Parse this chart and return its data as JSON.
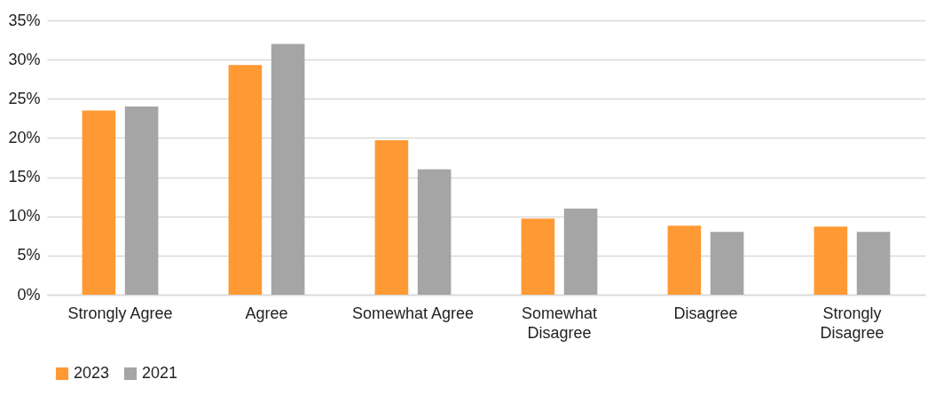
{
  "chart_data": {
    "type": "bar",
    "categories": [
      "Strongly Agree",
      "Agree",
      "Somewhat Agree",
      "Somewhat Disagree",
      "Disagree",
      "Strongly Disagree"
    ],
    "series": [
      {
        "name": "2023",
        "color": "#ff9933",
        "values": [
          23.5,
          29.3,
          19.7,
          9.7,
          8.8,
          8.7
        ]
      },
      {
        "name": "2021",
        "color": "#a5a5a5",
        "values": [
          24.0,
          32.0,
          16.0,
          11.0,
          8.0,
          8.0
        ]
      }
    ],
    "ylim": [
      0,
      35
    ],
    "yticks": [
      {
        "value": 0,
        "label": "0%"
      },
      {
        "value": 5,
        "label": "5%"
      },
      {
        "value": 10,
        "label": "10%"
      },
      {
        "value": 15,
        "label": "15%"
      },
      {
        "value": 20,
        "label": "20%"
      },
      {
        "value": 25,
        "label": "25%"
      },
      {
        "value": 30,
        "label": "30%"
      },
      {
        "value": 35,
        "label": "35%"
      }
    ],
    "grid": "y",
    "legend": "bottom"
  }
}
